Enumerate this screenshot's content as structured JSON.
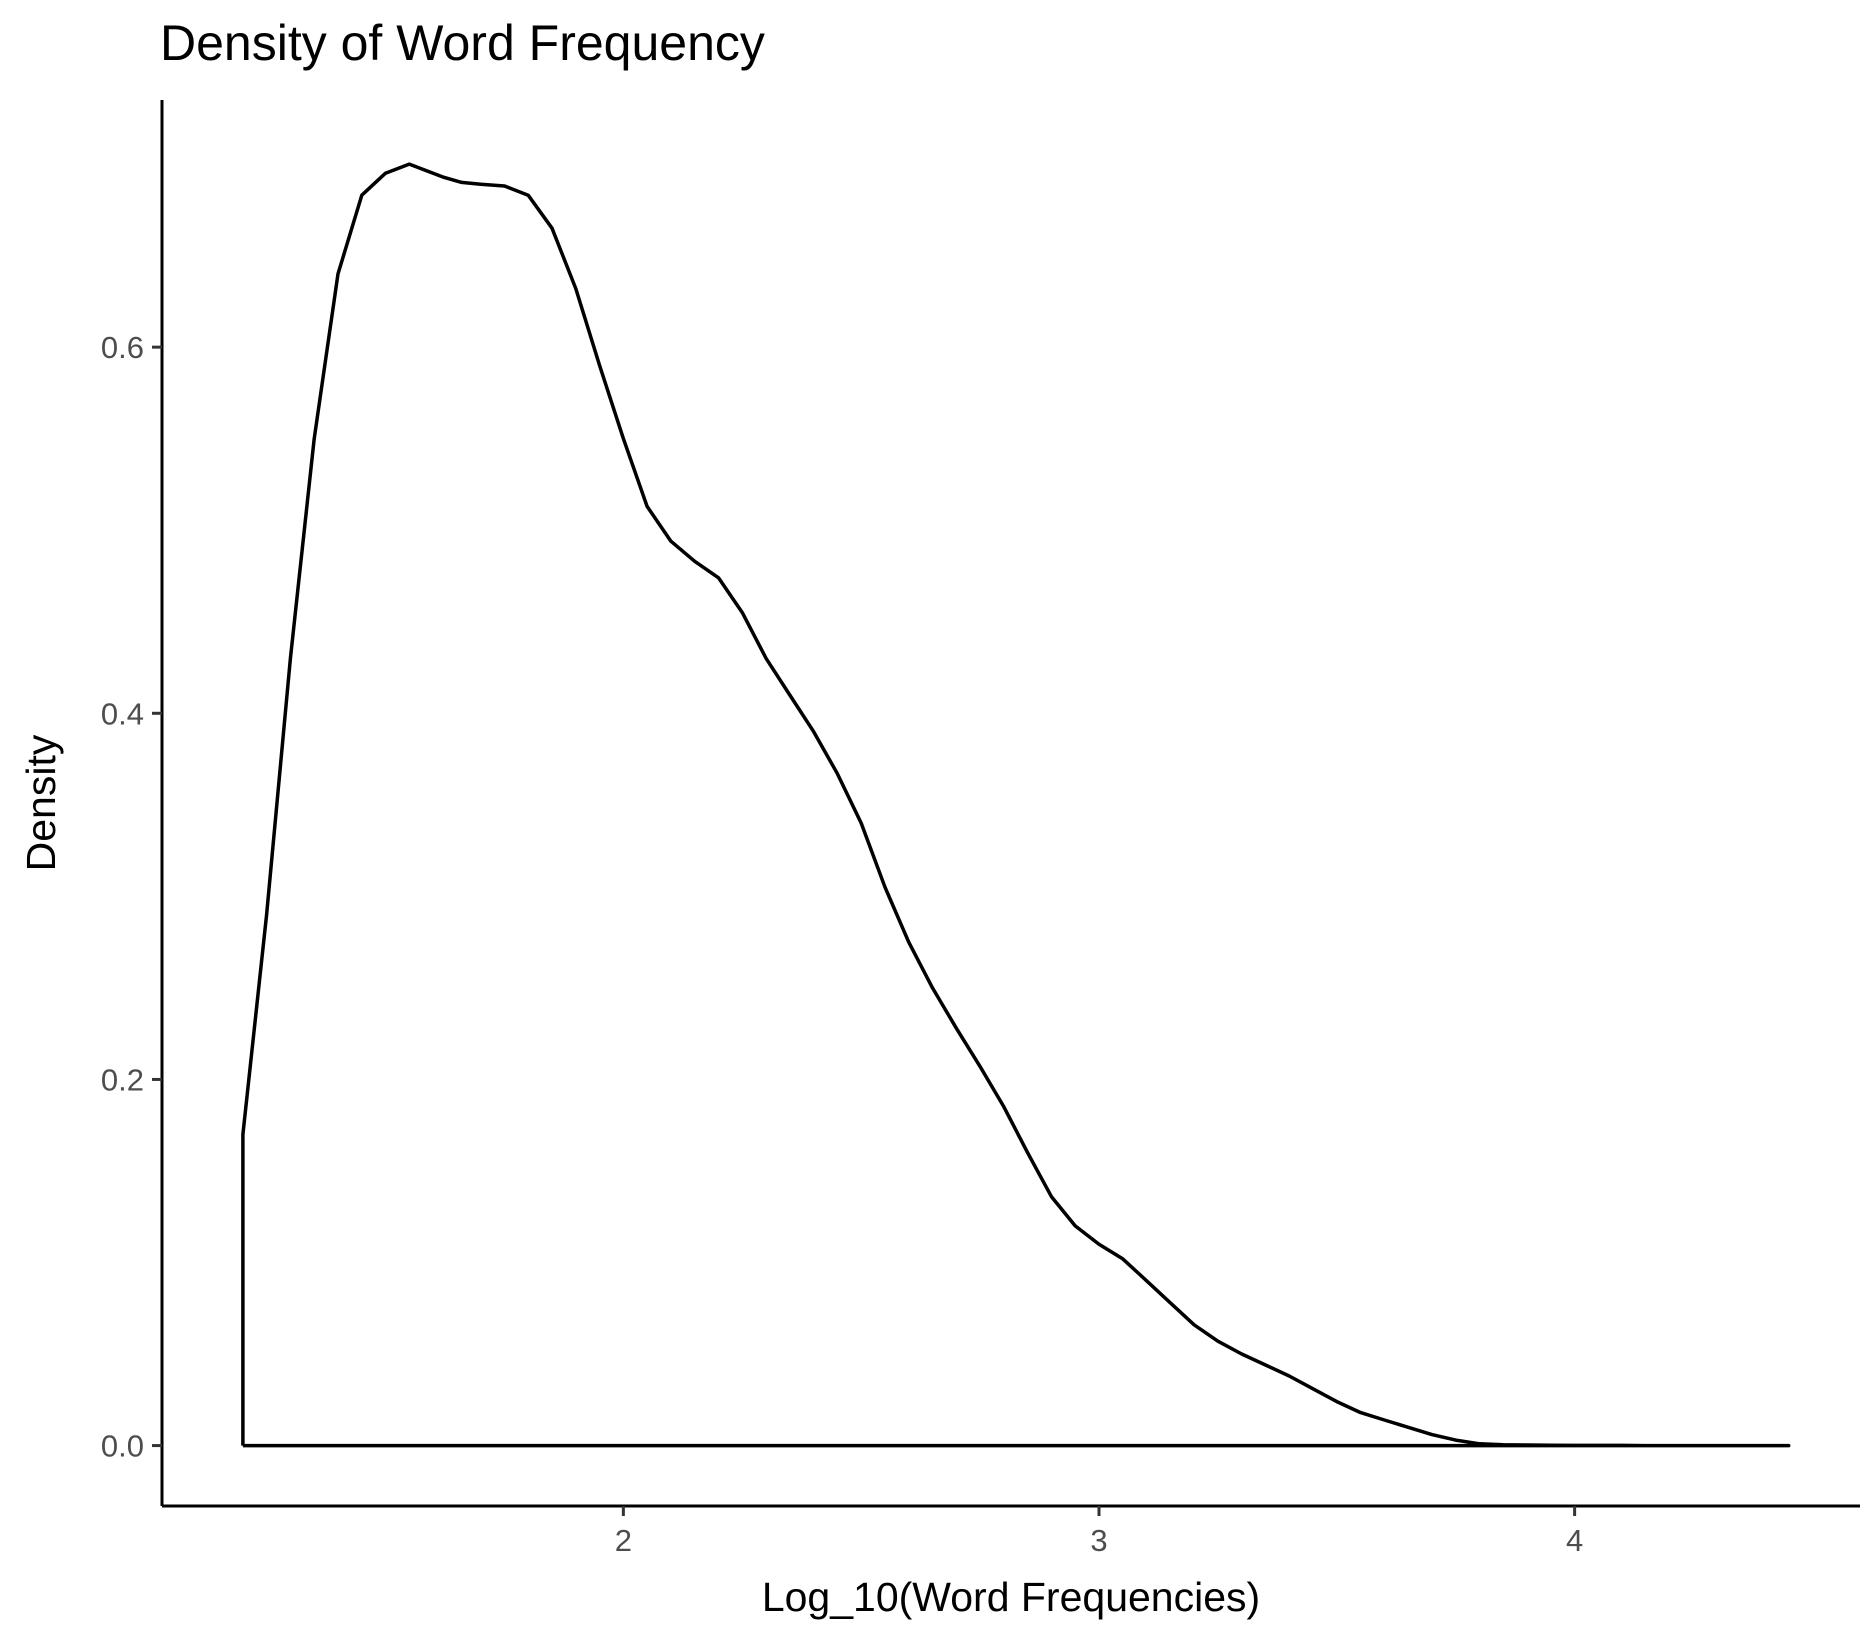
{
  "chart_data": {
    "type": "area",
    "title": "Density of Word Frequency",
    "xlabel": "Log_10(Word Frequencies)",
    "ylabel": "Density",
    "xlim": [
      1.03,
      4.6
    ],
    "ylim": [
      -0.033,
      0.735
    ],
    "xticks": [
      2,
      3,
      4
    ],
    "yticks": [
      0.0,
      0.2,
      0.4,
      0.6
    ],
    "xtick_labels": [
      "2",
      "3",
      "4"
    ],
    "ytick_labels": [
      "0.0",
      "0.2",
      "0.4",
      "0.6"
    ],
    "grid": false,
    "legend": "none",
    "line_color": "#000000",
    "fill": "none",
    "series": [
      {
        "x": [
          1.2,
          1.2,
          1.25,
          1.3,
          1.35,
          1.4,
          1.45,
          1.5,
          1.55,
          1.58,
          1.62,
          1.66,
          1.7,
          1.75,
          1.8,
          1.85,
          1.9,
          1.95,
          2.0,
          2.05,
          2.1,
          2.15,
          2.2,
          2.25,
          2.3,
          2.35,
          2.4,
          2.45,
          2.5,
          2.55,
          2.6,
          2.65,
          2.7,
          2.75,
          2.8,
          2.85,
          2.9,
          2.95,
          3.0,
          3.05,
          3.1,
          3.15,
          3.2,
          3.25,
          3.3,
          3.35,
          3.4,
          3.45,
          3.5,
          3.55,
          3.6,
          3.65,
          3.7,
          3.75,
          3.8,
          3.85,
          3.9,
          3.95,
          4.0,
          4.05,
          4.1,
          4.15,
          4.2,
          4.25,
          4.3,
          4.35,
          4.4,
          4.45
        ],
        "y": [
          0.0,
          0.17,
          0.29,
          0.43,
          0.55,
          0.64,
          0.683,
          0.695,
          0.7,
          0.697,
          0.693,
          0.69,
          0.689,
          0.688,
          0.683,
          0.665,
          0.632,
          0.59,
          0.55,
          0.513,
          0.494,
          0.483,
          0.474,
          0.455,
          0.43,
          0.41,
          0.39,
          0.367,
          0.34,
          0.305,
          0.275,
          0.25,
          0.228,
          0.207,
          0.185,
          0.16,
          0.136,
          0.12,
          0.11,
          0.102,
          0.09,
          0.078,
          0.066,
          0.057,
          0.05,
          0.044,
          0.038,
          0.031,
          0.024,
          0.018,
          0.014,
          0.01,
          0.006,
          0.003,
          0.001,
          0.0005,
          0.0003,
          0.0002,
          0.0001,
          0.0001,
          0.0001,
          0.0,
          0.0,
          0.0,
          0.0,
          0.0,
          0.0,
          0.0
        ]
      }
    ]
  }
}
